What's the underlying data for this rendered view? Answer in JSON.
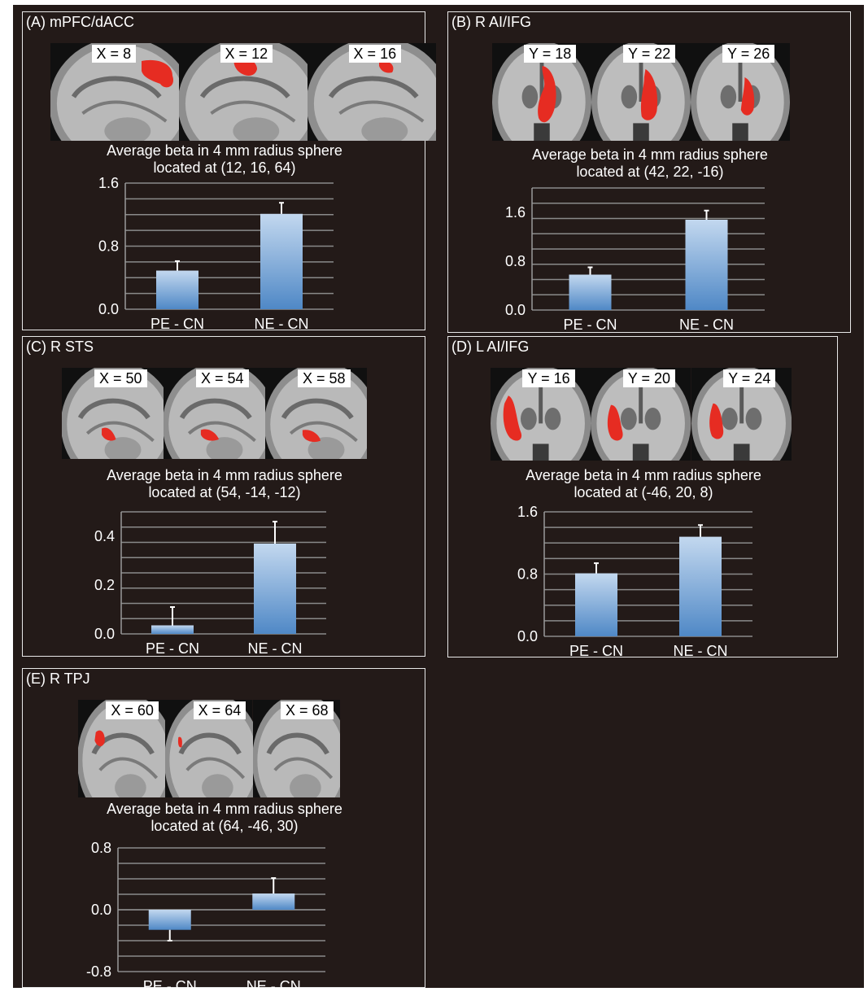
{
  "colors": {
    "background": "#231a18",
    "bar_top": "#c3d8ef",
    "bar_bottom": "#4f88c6",
    "lesion": "#e62c22"
  },
  "panels": [
    {
      "label": "(A) mPFC/dACC",
      "view": "sagittal",
      "slices": [
        "X = 8",
        "X = 12",
        "X = 16"
      ],
      "caption_line1": "Average beta in 4 mm radius sphere",
      "caption_line2": "located at (12, 16, 64)"
    },
    {
      "label": "(B) R AI/IFG",
      "view": "coronal",
      "slices": [
        "Y = 18",
        "Y = 22",
        "Y = 26"
      ],
      "caption_line1": "Average beta in 4 mm radius sphere",
      "caption_line2": "located at (42, 22, -16)"
    },
    {
      "label": "(C) R STS",
      "view": "sagittal",
      "slices": [
        "X = 50",
        "X = 54",
        "X = 58"
      ],
      "caption_line1": "Average beta in 4 mm radius sphere",
      "caption_line2": "located at (54, -14, -12)"
    },
    {
      "label": "(D) L AI/IFG",
      "view": "coronal",
      "slices": [
        "Y = 16",
        "Y = 20",
        "Y = 24"
      ],
      "caption_line1": "Average beta in 4 mm radius sphere",
      "caption_line2": "located at (-46, 20, 8)"
    },
    {
      "label": "(E) R TPJ",
      "view": "sagittal",
      "slices": [
        "X = 60",
        "X = 64",
        "X = 68"
      ],
      "caption_line1": "Average beta in 4 mm radius sphere",
      "caption_line2": "located at (64, -46, 30)"
    }
  ],
  "chart_data": [
    {
      "type": "bar",
      "categories": [
        "PE - CN",
        "NE - CN"
      ],
      "values": [
        0.49,
        1.21
      ],
      "errors": [
        0.12,
        0.14
      ],
      "ylim": [
        0,
        1.6
      ],
      "yticks": [
        "1.6",
        "0.8",
        "0.0"
      ],
      "ytick_values": [
        1.6,
        0.8,
        0.0
      ],
      "grid": true
    },
    {
      "type": "bar",
      "categories": [
        "PE - CN",
        "NE - CN"
      ],
      "values": [
        0.58,
        1.48
      ],
      "errors": [
        0.12,
        0.15
      ],
      "ylim": [
        0,
        2.0
      ],
      "yticks": [
        "1.6",
        "0.8",
        "0.0"
      ],
      "ytick_values": [
        1.6,
        0.8,
        0.0
      ],
      "grid": true
    },
    {
      "type": "bar",
      "categories": [
        "PE - CN",
        "NE - CN"
      ],
      "values": [
        0.035,
        0.37
      ],
      "errors": [
        0.075,
        0.09
      ],
      "ylim": [
        0,
        0.5
      ],
      "yticks": [
        "0.4",
        "0.2",
        "0.0"
      ],
      "ytick_values": [
        0.4,
        0.2,
        0.0
      ],
      "grid": true
    },
    {
      "type": "bar",
      "categories": [
        "PE - CN",
        "NE - CN"
      ],
      "values": [
        0.81,
        1.28
      ],
      "errors": [
        0.13,
        0.15
      ],
      "ylim": [
        0,
        1.6
      ],
      "yticks": [
        "1.6",
        "0.8",
        "0.0"
      ],
      "ytick_values": [
        1.6,
        0.8,
        0.0
      ],
      "grid": true
    },
    {
      "type": "bar",
      "categories": [
        "PE - CN",
        "NE - CN"
      ],
      "values": [
        -0.26,
        0.21
      ],
      "errors": [
        0.14,
        0.2
      ],
      "ylim": [
        -0.8,
        0.8
      ],
      "yticks": [
        "0.8",
        "0.0",
        "-0.8"
      ],
      "ytick_values": [
        0.8,
        0.0,
        -0.8
      ],
      "grid": true
    }
  ]
}
